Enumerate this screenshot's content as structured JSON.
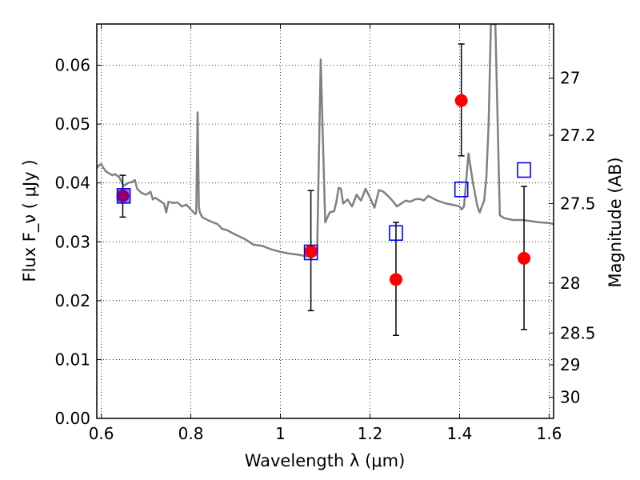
{
  "chart_data": {
    "type": "scatter",
    "xlabel": "Wavelength  λ (μm)",
    "ylabel": "Flux  F_ν  ( μJy )",
    "ylabel_right": "Magnitude (AB)",
    "xlim": [
      0.59,
      1.61
    ],
    "ylim": [
      0.0,
      0.067
    ],
    "grid": true,
    "x_ticks": [
      0.6,
      0.8,
      1.0,
      1.2,
      1.4,
      1.6
    ],
    "x_tick_labels": [
      "0.6",
      "0.8",
      "1",
      "1.2",
      "1.4",
      "1.6"
    ],
    "y_ticks": [
      0.0,
      0.01,
      0.02,
      0.03,
      0.04,
      0.05,
      0.06
    ],
    "y_tick_labels": [
      "0.00",
      "0.01",
      "0.02",
      "0.03",
      "0.04",
      "0.05",
      "0.06"
    ],
    "right_ticks": [
      {
        "label": "27",
        "flux": 0.0578
      },
      {
        "label": "27.2",
        "flux": 0.0481
      },
      {
        "label": "27.5",
        "flux": 0.0365
      },
      {
        "label": "28",
        "flux": 0.023
      },
      {
        "label": "28.5",
        "flux": 0.0145
      },
      {
        "label": "29",
        "flux": 0.0091
      },
      {
        "label": "30",
        "flux": 0.0036
      }
    ],
    "series": [
      {
        "kind": "line",
        "color": "#808080",
        "x": [
          0.59,
          0.595,
          0.6,
          0.605,
          0.61,
          0.62,
          0.625,
          0.63,
          0.64,
          0.65,
          0.66,
          0.67,
          0.675,
          0.68,
          0.69,
          0.7,
          0.71,
          0.715,
          0.72,
          0.73,
          0.74,
          0.745,
          0.75,
          0.76,
          0.77,
          0.78,
          0.79,
          0.8,
          0.81,
          0.812,
          0.815,
          0.818,
          0.82,
          0.825,
          0.83,
          0.84,
          0.85,
          0.86,
          0.87,
          0.88,
          0.9,
          0.92,
          0.94,
          0.96,
          0.98,
          1.0,
          1.02,
          1.04,
          1.06,
          1.07,
          1.078,
          1.082,
          1.086,
          1.09,
          1.094,
          1.1,
          1.11,
          1.12,
          1.125,
          1.13,
          1.135,
          1.14,
          1.15,
          1.16,
          1.17,
          1.18,
          1.19,
          1.2,
          1.21,
          1.22,
          1.23,
          1.24,
          1.25,
          1.26,
          1.28,
          1.29,
          1.3,
          1.31,
          1.32,
          1.33,
          1.35,
          1.37,
          1.39,
          1.4,
          1.405,
          1.41,
          1.42,
          1.43,
          1.44,
          1.445,
          1.45,
          1.455,
          1.46,
          1.465,
          1.47,
          1.475,
          1.48,
          1.49,
          1.5,
          1.52,
          1.54,
          1.56,
          1.58,
          1.6,
          1.61
        ],
        "y": [
          0.0425,
          0.043,
          0.0432,
          0.0425,
          0.042,
          0.0415,
          0.0413,
          0.0415,
          0.041,
          0.0395,
          0.04,
          0.0402,
          0.0405,
          0.039,
          0.0383,
          0.038,
          0.0385,
          0.0372,
          0.0375,
          0.037,
          0.0365,
          0.035,
          0.0368,
          0.0366,
          0.0367,
          0.036,
          0.0363,
          0.0355,
          0.0347,
          0.035,
          0.052,
          0.036,
          0.035,
          0.0342,
          0.034,
          0.0336,
          0.0333,
          0.033,
          0.0322,
          0.032,
          0.0312,
          0.0305,
          0.0295,
          0.0293,
          0.0287,
          0.0283,
          0.028,
          0.0278,
          0.0275,
          0.0273,
          0.0277,
          0.028,
          0.045,
          0.061,
          0.05,
          0.0333,
          0.035,
          0.0352,
          0.0368,
          0.0392,
          0.039,
          0.0365,
          0.0372,
          0.036,
          0.038,
          0.037,
          0.039,
          0.0375,
          0.0358,
          0.0388,
          0.0385,
          0.0378,
          0.037,
          0.036,
          0.037,
          0.0368,
          0.0372,
          0.0373,
          0.037,
          0.0378,
          0.037,
          0.0365,
          0.0362,
          0.036,
          0.0355,
          0.036,
          0.045,
          0.04,
          0.036,
          0.035,
          0.036,
          0.037,
          0.041,
          0.05,
          0.067,
          0.067,
          0.067,
          0.0345,
          0.034,
          0.0337,
          0.0337,
          0.0335,
          0.0333,
          0.0332,
          0.033
        ]
      },
      {
        "kind": "points",
        "marker": "circle",
        "color": "#ff0000",
        "x": [
          0.648,
          1.068,
          1.258,
          1.404,
          1.544
        ],
        "y": [
          0.0378,
          0.0284,
          0.0236,
          0.054,
          0.0272
        ],
        "yerr_low": [
          0.0342,
          0.0183,
          0.0141,
          0.0446,
          0.0151
        ],
        "yerr_high": [
          0.0413,
          0.0387,
          0.0333,
          0.0636,
          0.0394
        ]
      },
      {
        "kind": "points",
        "marker": "open-square",
        "color": "#0000ff",
        "x": [
          0.65,
          1.068,
          1.258,
          1.404,
          1.544
        ],
        "y": [
          0.0378,
          0.0282,
          0.0315,
          0.0389,
          0.0422
        ]
      }
    ]
  }
}
